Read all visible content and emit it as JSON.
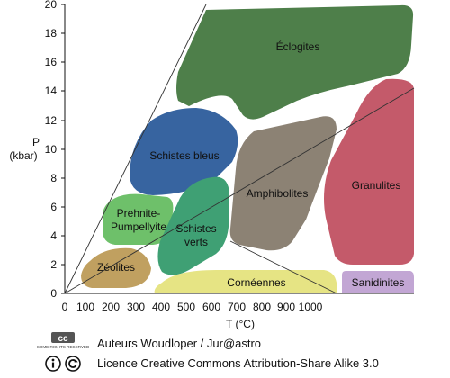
{
  "axes": {
    "y_label_line1": "P",
    "y_label_line2": "(kbar)",
    "x_label": "T (°C)",
    "y_ticks": [
      "0",
      "2",
      "4",
      "6",
      "8",
      "10",
      "12",
      "14",
      "16",
      "18",
      "20"
    ],
    "x_ticks": [
      "0",
      "100",
      "200",
      "300",
      "400",
      "500",
      "600",
      "700",
      "800",
      "900",
      "1000"
    ]
  },
  "facies": {
    "eclogites": "Éclogites",
    "schistes_bleus": "Schistes bleus",
    "granulites": "Granulites",
    "amphibolites": "Amphibolites",
    "prehnite_1": "Prehnite-",
    "prehnite_2": "Pumpellyite",
    "schistes_verts_1": "Schistes",
    "schistes_verts_2": "verts",
    "zeolites": "Zéolites",
    "corneennes": "Cornéennes",
    "sanidinites": "Sanidinites"
  },
  "colors": {
    "eclogites": "#4e7f4a",
    "schistes_bleus": "#3764a0",
    "granulites": "#c45a6a",
    "amphibolites": "#8c8274",
    "prehnite": "#6ec06a",
    "schistes_verts": "#3fa074",
    "zeolites": "#c0a060",
    "corneennes": "#e6e484",
    "sanidinites": "#c2a6d4"
  },
  "footer": {
    "cc_badge": "cc",
    "cc_subtext": "SOME RIGHTS RESERVED",
    "authors": "Auteurs Woudloper / Jur@astro",
    "license": "Licence Creative Commons Attribution-Share Alike 3.0"
  }
}
